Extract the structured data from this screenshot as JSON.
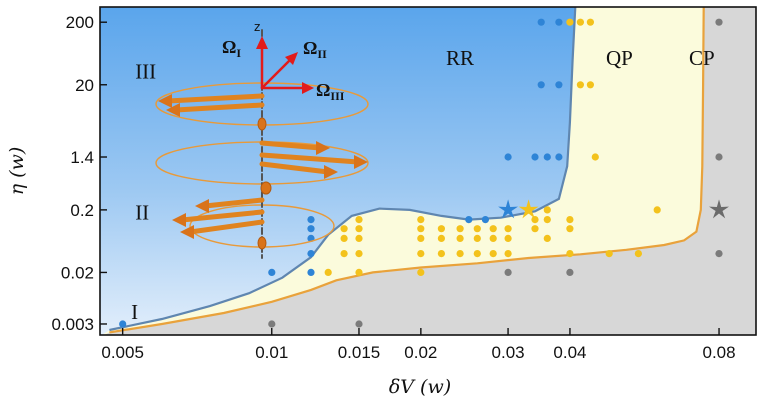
{
  "chart_data": {
    "type": "scatter",
    "title": "",
    "xlabel": "δV (w)",
    "ylabel": "η (w)",
    "xscale": "log",
    "yscale": "log",
    "xlim": [
      0.0045,
      0.095
    ],
    "ylim": [
      0.002,
      350
    ],
    "xticks": [
      {
        "v": 0.005,
        "label": "0.005"
      },
      {
        "v": 0.01,
        "label": "0.01"
      },
      {
        "v": 0.015,
        "label": "0.015"
      },
      {
        "v": 0.02,
        "label": "0.02"
      },
      {
        "v": 0.03,
        "label": "0.03"
      },
      {
        "v": 0.04,
        "label": "0.04"
      },
      {
        "v": 0.08,
        "label": "0.08"
      }
    ],
    "yticks": [
      {
        "v": 0.003,
        "label": "0.003"
      },
      {
        "v": 0.02,
        "label": "0.02"
      },
      {
        "v": 0.2,
        "label": "0.2"
      },
      {
        "v": 1.4,
        "label": "1.4"
      },
      {
        "v": 20,
        "label": "20"
      },
      {
        "v": 200,
        "label": "200"
      }
    ],
    "regions": [
      {
        "name": "RR",
        "label": "RR",
        "color": "#5aa7ec"
      },
      {
        "name": "QP",
        "label": "QP",
        "color": "#fbfbdc"
      },
      {
        "name": "CP",
        "label": "CP",
        "color": "#d7d7d7"
      }
    ],
    "boundaries": [
      {
        "name": "RR-QP",
        "color": "#5f86b0",
        "points": [
          [
            0.0047,
            0.0024
          ],
          [
            0.006,
            0.0036
          ],
          [
            0.0075,
            0.0058
          ],
          [
            0.009,
            0.0093
          ],
          [
            0.0105,
            0.0165
          ],
          [
            0.012,
            0.035
          ],
          [
            0.013,
            0.08
          ],
          [
            0.0145,
            0.16
          ],
          [
            0.0165,
            0.21
          ],
          [
            0.019,
            0.2
          ],
          [
            0.022,
            0.16
          ],
          [
            0.025,
            0.14
          ],
          [
            0.029,
            0.15
          ],
          [
            0.034,
            0.19
          ],
          [
            0.038,
            0.3
          ],
          [
            0.0395,
            1.0
          ],
          [
            0.04,
            5
          ],
          [
            0.0405,
            50
          ],
          [
            0.041,
            350
          ]
        ]
      },
      {
        "name": "QP-CP",
        "color": "#e9a23b",
        "points": [
          [
            0.0047,
            0.0022
          ],
          [
            0.006,
            0.003
          ],
          [
            0.008,
            0.0045
          ],
          [
            0.01,
            0.0068
          ],
          [
            0.012,
            0.0105
          ],
          [
            0.0135,
            0.015
          ],
          [
            0.016,
            0.02
          ],
          [
            0.02,
            0.024
          ],
          [
            0.026,
            0.028
          ],
          [
            0.033,
            0.034
          ],
          [
            0.042,
            0.039
          ],
          [
            0.052,
            0.046
          ],
          [
            0.062,
            0.055
          ],
          [
            0.068,
            0.065
          ],
          [
            0.072,
            0.09
          ],
          [
            0.0735,
            0.2
          ],
          [
            0.074,
            1
          ],
          [
            0.0743,
            20
          ],
          [
            0.0745,
            350
          ]
        ]
      }
    ],
    "series": [
      {
        "name": "RR",
        "color": "#2e84d6",
        "points": [
          [
            0.005,
            0.003
          ],
          [
            0.01,
            0.02
          ],
          [
            0.012,
            0.02
          ],
          [
            0.012,
            0.04
          ],
          [
            0.012,
            0.07
          ],
          [
            0.012,
            0.1
          ],
          [
            0.012,
            0.14
          ],
          [
            0.025,
            0.14
          ],
          [
            0.027,
            0.14
          ],
          [
            0.03,
            1.4
          ],
          [
            0.034,
            1.4
          ],
          [
            0.036,
            1.4
          ],
          [
            0.038,
            1.4
          ],
          [
            0.035,
            20
          ],
          [
            0.038,
            20
          ],
          [
            0.035,
            200
          ],
          [
            0.038,
            200
          ]
        ]
      },
      {
        "name": "QP",
        "color": "#f3c21c",
        "points": [
          [
            0.013,
            0.02
          ],
          [
            0.014,
            0.04
          ],
          [
            0.014,
            0.07
          ],
          [
            0.014,
            0.1
          ],
          [
            0.015,
            0.02
          ],
          [
            0.015,
            0.04
          ],
          [
            0.015,
            0.07
          ],
          [
            0.015,
            0.1
          ],
          [
            0.015,
            0.14
          ],
          [
            0.02,
            0.02
          ],
          [
            0.02,
            0.04
          ],
          [
            0.02,
            0.07
          ],
          [
            0.02,
            0.1
          ],
          [
            0.02,
            0.14
          ],
          [
            0.022,
            0.04
          ],
          [
            0.022,
            0.07
          ],
          [
            0.022,
            0.1
          ],
          [
            0.024,
            0.04
          ],
          [
            0.024,
            0.07
          ],
          [
            0.024,
            0.1
          ],
          [
            0.026,
            0.04
          ],
          [
            0.026,
            0.07
          ],
          [
            0.026,
            0.1
          ],
          [
            0.028,
            0.04
          ],
          [
            0.028,
            0.07
          ],
          [
            0.028,
            0.1
          ],
          [
            0.03,
            0.04
          ],
          [
            0.03,
            0.07
          ],
          [
            0.03,
            0.1
          ],
          [
            0.034,
            0.1
          ],
          [
            0.034,
            0.14
          ],
          [
            0.036,
            0.07
          ],
          [
            0.036,
            0.14
          ],
          [
            0.036,
            0.2
          ],
          [
            0.04,
            0.04
          ],
          [
            0.04,
            0.1
          ],
          [
            0.04,
            0.14
          ],
          [
            0.048,
            0.04
          ],
          [
            0.055,
            0.04
          ],
          [
            0.06,
            0.2
          ],
          [
            0.045,
            1.4
          ],
          [
            0.042,
            20
          ],
          [
            0.044,
            20
          ],
          [
            0.04,
            200
          ],
          [
            0.042,
            200
          ],
          [
            0.044,
            200
          ]
        ]
      },
      {
        "name": "CP",
        "color": "#7b7b7b",
        "points": [
          [
            0.01,
            0.003
          ],
          [
            0.015,
            0.003
          ],
          [
            0.03,
            0.02
          ],
          [
            0.04,
            0.02
          ],
          [
            0.08,
            0.04
          ],
          [
            0.08,
            1.4
          ],
          [
            0.08,
            200
          ]
        ]
      }
    ],
    "markers": [
      {
        "name": "rr-star",
        "x": 0.03,
        "y": 0.2,
        "color": "#2e84d6"
      },
      {
        "name": "qp-star",
        "x": 0.033,
        "y": 0.2,
        "color": "#f3c21c"
      },
      {
        "name": "cp-star",
        "x": 0.08,
        "y": 0.2,
        "color": "#6b6b6b"
      }
    ],
    "annotations": [
      {
        "name": "label-I",
        "text": "I",
        "x": 0.0052,
        "y": 0.0036
      },
      {
        "name": "label-II",
        "text": "II",
        "x": 0.0053,
        "y": 0.14
      },
      {
        "name": "label-III",
        "text": "III",
        "x": 0.0053,
        "y": 25
      }
    ]
  },
  "inset": {
    "axis_label": "z",
    "omega_I": {
      "base": "Ω",
      "sub": "I"
    },
    "omega_II": {
      "base": "Ω",
      "sub": "II"
    },
    "omega_III": {
      "base": "Ω",
      "sub": "III"
    }
  }
}
